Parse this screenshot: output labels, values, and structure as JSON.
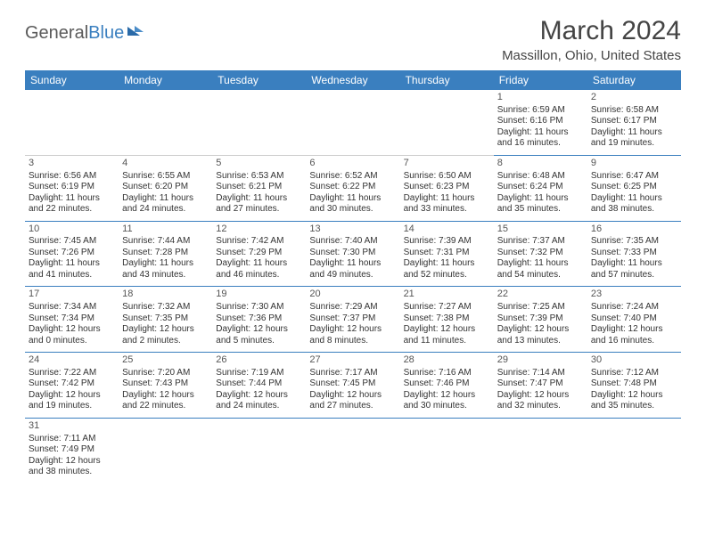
{
  "logo": {
    "part1": "General",
    "part2": "Blue"
  },
  "title": "March 2024",
  "location": "Massillon, Ohio, United States",
  "colors": {
    "header_bg": "#3a7fbf",
    "header_text": "#ffffff",
    "text": "#333333",
    "border": "#3a7fbf"
  },
  "weekdays": [
    "Sunday",
    "Monday",
    "Tuesday",
    "Wednesday",
    "Thursday",
    "Friday",
    "Saturday"
  ],
  "weeks": [
    [
      null,
      null,
      null,
      null,
      null,
      {
        "n": "1",
        "sr": "Sunrise: 6:59 AM",
        "ss": "Sunset: 6:16 PM",
        "dl": "Daylight: 11 hours and 16 minutes."
      },
      {
        "n": "2",
        "sr": "Sunrise: 6:58 AM",
        "ss": "Sunset: 6:17 PM",
        "dl": "Daylight: 11 hours and 19 minutes."
      }
    ],
    [
      {
        "n": "3",
        "sr": "Sunrise: 6:56 AM",
        "ss": "Sunset: 6:19 PM",
        "dl": "Daylight: 11 hours and 22 minutes."
      },
      {
        "n": "4",
        "sr": "Sunrise: 6:55 AM",
        "ss": "Sunset: 6:20 PM",
        "dl": "Daylight: 11 hours and 24 minutes."
      },
      {
        "n": "5",
        "sr": "Sunrise: 6:53 AM",
        "ss": "Sunset: 6:21 PM",
        "dl": "Daylight: 11 hours and 27 minutes."
      },
      {
        "n": "6",
        "sr": "Sunrise: 6:52 AM",
        "ss": "Sunset: 6:22 PM",
        "dl": "Daylight: 11 hours and 30 minutes."
      },
      {
        "n": "7",
        "sr": "Sunrise: 6:50 AM",
        "ss": "Sunset: 6:23 PM",
        "dl": "Daylight: 11 hours and 33 minutes."
      },
      {
        "n": "8",
        "sr": "Sunrise: 6:48 AM",
        "ss": "Sunset: 6:24 PM",
        "dl": "Daylight: 11 hours and 35 minutes."
      },
      {
        "n": "9",
        "sr": "Sunrise: 6:47 AM",
        "ss": "Sunset: 6:25 PM",
        "dl": "Daylight: 11 hours and 38 minutes."
      }
    ],
    [
      {
        "n": "10",
        "sr": "Sunrise: 7:45 AM",
        "ss": "Sunset: 7:26 PM",
        "dl": "Daylight: 11 hours and 41 minutes."
      },
      {
        "n": "11",
        "sr": "Sunrise: 7:44 AM",
        "ss": "Sunset: 7:28 PM",
        "dl": "Daylight: 11 hours and 43 minutes."
      },
      {
        "n": "12",
        "sr": "Sunrise: 7:42 AM",
        "ss": "Sunset: 7:29 PM",
        "dl": "Daylight: 11 hours and 46 minutes."
      },
      {
        "n": "13",
        "sr": "Sunrise: 7:40 AM",
        "ss": "Sunset: 7:30 PM",
        "dl": "Daylight: 11 hours and 49 minutes."
      },
      {
        "n": "14",
        "sr": "Sunrise: 7:39 AM",
        "ss": "Sunset: 7:31 PM",
        "dl": "Daylight: 11 hours and 52 minutes."
      },
      {
        "n": "15",
        "sr": "Sunrise: 7:37 AM",
        "ss": "Sunset: 7:32 PM",
        "dl": "Daylight: 11 hours and 54 minutes."
      },
      {
        "n": "16",
        "sr": "Sunrise: 7:35 AM",
        "ss": "Sunset: 7:33 PM",
        "dl": "Daylight: 11 hours and 57 minutes."
      }
    ],
    [
      {
        "n": "17",
        "sr": "Sunrise: 7:34 AM",
        "ss": "Sunset: 7:34 PM",
        "dl": "Daylight: 12 hours and 0 minutes."
      },
      {
        "n": "18",
        "sr": "Sunrise: 7:32 AM",
        "ss": "Sunset: 7:35 PM",
        "dl": "Daylight: 12 hours and 2 minutes."
      },
      {
        "n": "19",
        "sr": "Sunrise: 7:30 AM",
        "ss": "Sunset: 7:36 PM",
        "dl": "Daylight: 12 hours and 5 minutes."
      },
      {
        "n": "20",
        "sr": "Sunrise: 7:29 AM",
        "ss": "Sunset: 7:37 PM",
        "dl": "Daylight: 12 hours and 8 minutes."
      },
      {
        "n": "21",
        "sr": "Sunrise: 7:27 AM",
        "ss": "Sunset: 7:38 PM",
        "dl": "Daylight: 12 hours and 11 minutes."
      },
      {
        "n": "22",
        "sr": "Sunrise: 7:25 AM",
        "ss": "Sunset: 7:39 PM",
        "dl": "Daylight: 12 hours and 13 minutes."
      },
      {
        "n": "23",
        "sr": "Sunrise: 7:24 AM",
        "ss": "Sunset: 7:40 PM",
        "dl": "Daylight: 12 hours and 16 minutes."
      }
    ],
    [
      {
        "n": "24",
        "sr": "Sunrise: 7:22 AM",
        "ss": "Sunset: 7:42 PM",
        "dl": "Daylight: 12 hours and 19 minutes."
      },
      {
        "n": "25",
        "sr": "Sunrise: 7:20 AM",
        "ss": "Sunset: 7:43 PM",
        "dl": "Daylight: 12 hours and 22 minutes."
      },
      {
        "n": "26",
        "sr": "Sunrise: 7:19 AM",
        "ss": "Sunset: 7:44 PM",
        "dl": "Daylight: 12 hours and 24 minutes."
      },
      {
        "n": "27",
        "sr": "Sunrise: 7:17 AM",
        "ss": "Sunset: 7:45 PM",
        "dl": "Daylight: 12 hours and 27 minutes."
      },
      {
        "n": "28",
        "sr": "Sunrise: 7:16 AM",
        "ss": "Sunset: 7:46 PM",
        "dl": "Daylight: 12 hours and 30 minutes."
      },
      {
        "n": "29",
        "sr": "Sunrise: 7:14 AM",
        "ss": "Sunset: 7:47 PM",
        "dl": "Daylight: 12 hours and 32 minutes."
      },
      {
        "n": "30",
        "sr": "Sunrise: 7:12 AM",
        "ss": "Sunset: 7:48 PM",
        "dl": "Daylight: 12 hours and 35 minutes."
      }
    ],
    [
      {
        "n": "31",
        "sr": "Sunrise: 7:11 AM",
        "ss": "Sunset: 7:49 PM",
        "dl": "Daylight: 12 hours and 38 minutes."
      },
      null,
      null,
      null,
      null,
      null,
      null
    ]
  ]
}
